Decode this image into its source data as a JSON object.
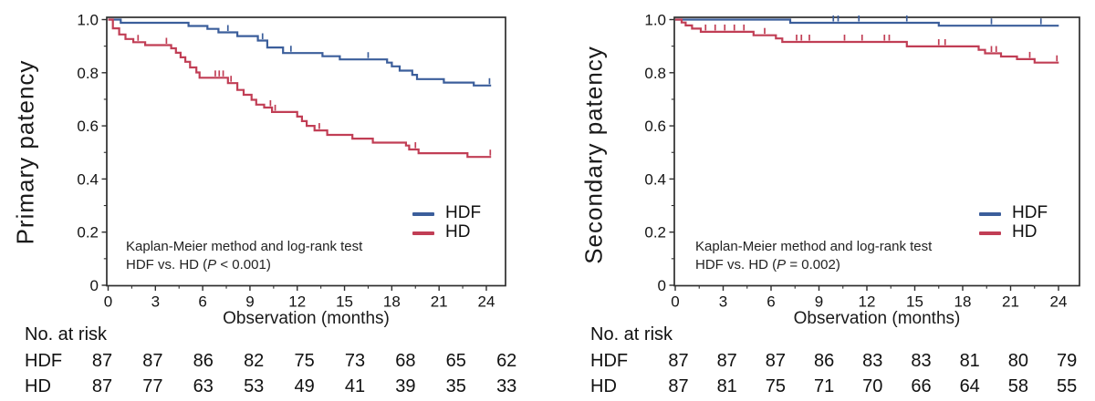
{
  "colors": {
    "hdf_line": "#3b5e9b",
    "hd_line": "#c13e55",
    "axis": "#2e2e2e",
    "text": "#141414"
  },
  "chart_data": [
    {
      "type": "line",
      "subtype": "kaplan-meier-step",
      "xlabel": "Observation (months)",
      "ylabel": "Primary patency",
      "xlim": [
        0,
        24
      ],
      "ylim": [
        0,
        1.0
      ],
      "grid": false,
      "legend_position": "lower right",
      "xticks": [
        "0",
        "3",
        "6",
        "9",
        "12",
        "15",
        "18",
        "21",
        "24"
      ],
      "yticks": [
        "0",
        "0.2",
        "0.4",
        "0.6",
        "0.8",
        "1.0"
      ],
      "annotation": {
        "line1": "Kaplan-Meier method and log-rank test",
        "line2_prefix": "HDF vs. HD (",
        "line2_p": "P",
        "line2_suffix": " < 0.001)"
      },
      "series": [
        {
          "name": "HDF",
          "color_key": "hdf_line",
          "steps": [
            [
              0,
              1.0
            ],
            [
              0.8,
              0.988
            ],
            [
              5.1,
              0.976
            ],
            [
              6.3,
              0.965
            ],
            [
              7.0,
              0.952
            ],
            [
              8.2,
              0.938
            ],
            [
              9.5,
              0.921
            ],
            [
              10.1,
              0.895
            ],
            [
              11.1,
              0.874
            ],
            [
              13.6,
              0.862
            ],
            [
              14.7,
              0.85
            ],
            [
              17.7,
              0.838
            ],
            [
              18.0,
              0.824
            ],
            [
              18.5,
              0.808
            ],
            [
              19.3,
              0.792
            ],
            [
              19.6,
              0.776
            ],
            [
              21.3,
              0.763
            ],
            [
              23.2,
              0.752
            ]
          ],
          "censor_marks": [
            [
              7.6,
              0.952
            ],
            [
              9.8,
              0.921
            ],
            [
              11.6,
              0.874
            ],
            [
              16.5,
              0.85
            ],
            [
              24.2,
              0.752
            ]
          ]
        },
        {
          "name": "HD",
          "color_key": "hd_line",
          "steps": [
            [
              0,
              1.0
            ],
            [
              0.3,
              0.967
            ],
            [
              0.7,
              0.944
            ],
            [
              1.1,
              0.927
            ],
            [
              1.6,
              0.915
            ],
            [
              2.35,
              0.904
            ],
            [
              4.0,
              0.892
            ],
            [
              4.3,
              0.875
            ],
            [
              4.6,
              0.858
            ],
            [
              4.9,
              0.841
            ],
            [
              5.2,
              0.82
            ],
            [
              5.6,
              0.801
            ],
            [
              5.8,
              0.781
            ],
            [
              7.6,
              0.761
            ],
            [
              8.2,
              0.735
            ],
            [
              8.6,
              0.717
            ],
            [
              9.1,
              0.698
            ],
            [
              9.4,
              0.68
            ],
            [
              9.9,
              0.669
            ],
            [
              10.4,
              0.652
            ],
            [
              12.0,
              0.635
            ],
            [
              12.3,
              0.618
            ],
            [
              12.6,
              0.6
            ],
            [
              13.1,
              0.583
            ],
            [
              13.9,
              0.566
            ],
            [
              15.5,
              0.552
            ],
            [
              16.8,
              0.537
            ],
            [
              18.9,
              0.526
            ],
            [
              19.1,
              0.511
            ],
            [
              19.7,
              0.497
            ],
            [
              22.8,
              0.483
            ]
          ],
          "censor_marks": [
            [
              1.9,
              0.915
            ],
            [
              3.7,
              0.904
            ],
            [
              6.8,
              0.781
            ],
            [
              7.05,
              0.781
            ],
            [
              7.3,
              0.781
            ],
            [
              7.8,
              0.761
            ],
            [
              10.3,
              0.669
            ],
            [
              10.6,
              0.652
            ],
            [
              13.4,
              0.583
            ],
            [
              19.5,
              0.511
            ],
            [
              24.25,
              0.483
            ]
          ]
        }
      ],
      "risk_table": {
        "title": "No. at risk",
        "timepoints": [
          0,
          3,
          6,
          9,
          12,
          15,
          18,
          21,
          24
        ],
        "rows": [
          {
            "label": "HDF",
            "counts": [
              87,
              87,
              86,
              82,
              75,
              73,
              68,
              65,
              62
            ]
          },
          {
            "label": "HD",
            "counts": [
              87,
              77,
              63,
              53,
              49,
              41,
              39,
              35,
              33
            ]
          }
        ]
      }
    },
    {
      "type": "line",
      "subtype": "kaplan-meier-step",
      "xlabel": "Observation (months)",
      "ylabel": "Secondary patency",
      "xlim": [
        0,
        24
      ],
      "ylim": [
        0,
        1.0
      ],
      "grid": false,
      "legend_position": "lower right",
      "xticks": [
        "0",
        "3",
        "6",
        "9",
        "12",
        "15",
        "18",
        "21",
        "24"
      ],
      "yticks": [
        "0",
        "0.2",
        "0.4",
        "0.6",
        "0.8",
        "1.0"
      ],
      "annotation": {
        "line1": "Kaplan-Meier method and log-rank test",
        "line2_prefix": "HDF vs. HD (",
        "line2_p": "P",
        "line2_suffix": " = 0.002)"
      },
      "series": [
        {
          "name": "HDF",
          "color_key": "hdf_line",
          "steps": [
            [
              0,
              1.0
            ],
            [
              7.2,
              0.988
            ],
            [
              16.5,
              0.977
            ]
          ],
          "censor_marks": [
            [
              9.9,
              0.988
            ],
            [
              10.2,
              0.988
            ],
            [
              11.5,
              0.988
            ],
            [
              14.5,
              0.988
            ],
            [
              19.8,
              0.977
            ],
            [
              22.9,
              0.977
            ]
          ]
        },
        {
          "name": "HD",
          "color_key": "hd_line",
          "steps": [
            [
              0,
              1.0
            ],
            [
              0.4,
              0.989
            ],
            [
              0.65,
              0.978
            ],
            [
              1.05,
              0.966
            ],
            [
              1.6,
              0.954
            ],
            [
              4.9,
              0.941
            ],
            [
              6.3,
              0.929
            ],
            [
              6.7,
              0.916
            ],
            [
              14.5,
              0.899
            ],
            [
              19.0,
              0.886
            ],
            [
              19.4,
              0.873
            ],
            [
              20.4,
              0.861
            ],
            [
              21.4,
              0.851
            ],
            [
              22.5,
              0.838
            ]
          ],
          "censor_marks": [
            [
              1.9,
              0.954
            ],
            [
              2.5,
              0.954
            ],
            [
              3.1,
              0.954
            ],
            [
              3.7,
              0.954
            ],
            [
              4.3,
              0.954
            ],
            [
              5.6,
              0.941
            ],
            [
              7.6,
              0.916
            ],
            [
              7.9,
              0.916
            ],
            [
              8.4,
              0.916
            ],
            [
              10.6,
              0.916
            ],
            [
              11.7,
              0.916
            ],
            [
              13.1,
              0.916
            ],
            [
              13.4,
              0.916
            ],
            [
              16.5,
              0.899
            ],
            [
              16.9,
              0.899
            ],
            [
              19.8,
              0.873
            ],
            [
              20.1,
              0.873
            ],
            [
              22.2,
              0.851
            ],
            [
              23.9,
              0.838
            ]
          ]
        }
      ],
      "risk_table": {
        "title": "No. at risk",
        "timepoints": [
          0,
          3,
          6,
          9,
          12,
          15,
          18,
          21,
          24
        ],
        "rows": [
          {
            "label": "HDF",
            "counts": [
              87,
              87,
              87,
              86,
              83,
              83,
              81,
              80,
              79
            ]
          },
          {
            "label": "HD",
            "counts": [
              87,
              81,
              75,
              71,
              70,
              66,
              64,
              58,
              55
            ]
          }
        ]
      }
    }
  ]
}
